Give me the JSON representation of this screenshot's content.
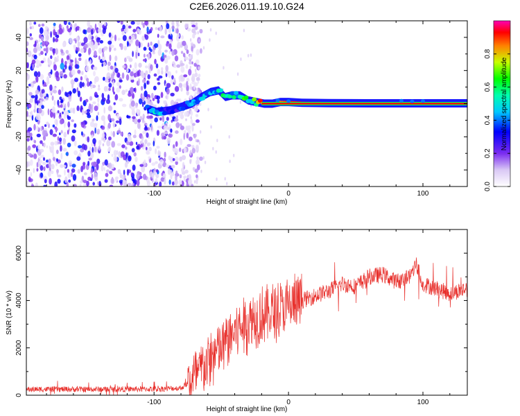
{
  "title": "C2E6.2026.011.19.10.G24",
  "colors": {
    "snr_line": "#e8302c",
    "axis": "#000000"
  },
  "chart_data": [
    {
      "type": "heatmap",
      "name": "spectrogram",
      "xlabel": "Height of straight line (km)",
      "ylabel": "Frequency (Hz)",
      "xlim": [
        -195,
        133
      ],
      "ylim": [
        -50,
        50
      ],
      "xticks": [
        -100,
        0,
        100
      ],
      "xtick_labels": [
        "-100",
        "0",
        "100"
      ],
      "yticks": [
        -40,
        -20,
        0,
        20,
        40
      ],
      "ytick_labels": [
        "-40",
        "-20",
        "0",
        "20",
        "40"
      ],
      "colorbar": {
        "label": "Normalized spectral amplitude",
        "range": [
          0,
          1
        ],
        "ticks": [
          0.0,
          0.2,
          0.4,
          0.6,
          0.8
        ],
        "tick_labels": [
          "0.0",
          "0.2",
          "0.4",
          "0.6",
          "0.8"
        ]
      },
      "ridge": [
        {
          "x": -105,
          "y": -3,
          "amp": 0.35
        },
        {
          "x": -98,
          "y": -5,
          "amp": 0.5
        },
        {
          "x": -88,
          "y": -4,
          "amp": 0.3
        },
        {
          "x": -80,
          "y": -2,
          "amp": 0.35
        },
        {
          "x": -72,
          "y": 0,
          "amp": 0.4
        },
        {
          "x": -65,
          "y": 4,
          "amp": 0.45
        },
        {
          "x": -58,
          "y": 7,
          "amp": 0.5
        },
        {
          "x": -52,
          "y": 8,
          "amp": 0.55
        },
        {
          "x": -47,
          "y": 4,
          "amp": 0.5
        },
        {
          "x": -42,
          "y": 5,
          "amp": 0.5
        },
        {
          "x": -36,
          "y": 5,
          "amp": 0.55
        },
        {
          "x": -30,
          "y": 2,
          "amp": 0.6
        },
        {
          "x": -24,
          "y": 1,
          "amp": 0.75
        },
        {
          "x": -18,
          "y": 0,
          "amp": 0.8
        },
        {
          "x": -12,
          "y": 0,
          "amp": 0.85
        },
        {
          "x": -6,
          "y": 1,
          "amp": 0.85
        },
        {
          "x": 0,
          "y": 1,
          "amp": 0.9
        },
        {
          "x": 10,
          "y": 0.5,
          "amp": 0.92
        },
        {
          "x": 30,
          "y": 0.3,
          "amp": 0.95
        },
        {
          "x": 60,
          "y": 0.2,
          "amp": 0.96
        },
        {
          "x": 90,
          "y": 0.2,
          "amp": 0.97
        },
        {
          "x": 120,
          "y": 0.2,
          "amp": 0.97
        },
        {
          "x": 133,
          "y": 0.2,
          "amp": 0.97
        }
      ],
      "noise_region": {
        "x_from": -195,
        "x_to": -75,
        "level": 0.2
      }
    },
    {
      "type": "line",
      "name": "snr",
      "xlabel": "Height of straight line (km)",
      "ylabel": "SNR (10 * v/v)",
      "xlim": [
        -195,
        133
      ],
      "ylim": [
        0,
        7000
      ],
      "xticks": [
        -100,
        0,
        100
      ],
      "xtick_labels": [
        "-100",
        "0",
        "100"
      ],
      "yticks": [
        0,
        2000,
        4000,
        6000
      ],
      "ytick_labels": [
        "0",
        "2000",
        "4000",
        "6000"
      ],
      "envelope": {
        "x": [
          -195,
          -150,
          -100,
          -80,
          -70,
          -60,
          -50,
          -40,
          -30,
          -20,
          -10,
          0,
          10,
          20,
          30,
          40,
          50,
          60,
          70,
          80,
          90,
          95,
          100,
          110,
          120,
          133
        ],
        "y": [
          250,
          250,
          260,
          300,
          700,
          1400,
          2000,
          2700,
          3100,
          3400,
          3500,
          3700,
          4000,
          4200,
          4400,
          4700,
          4600,
          5000,
          5100,
          4800,
          5000,
          5600,
          4700,
          4500,
          4300,
          4500
        ]
      }
    }
  ]
}
